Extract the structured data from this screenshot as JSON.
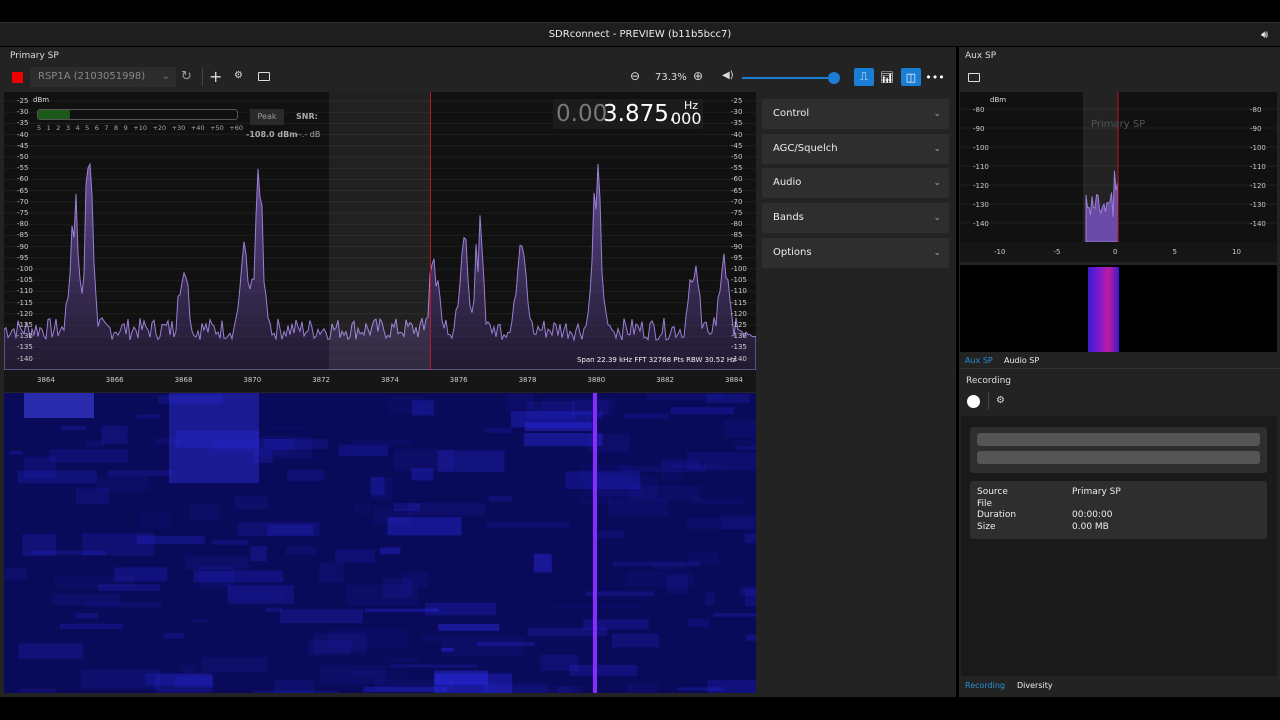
{
  "window": {
    "title": "SDRconnect - PREVIEW (b11b5bcc7)",
    "speaker_icon": "speaker-icon"
  },
  "primary": {
    "title": "Primary SP",
    "device": "RSP1A (2103051998)",
    "zoom": "73.3%",
    "volume_percent": 100,
    "meter": {
      "unit": "dBm",
      "scale": [
        "5",
        "1",
        "2",
        "3",
        "4",
        "5",
        "6",
        "7",
        "8",
        "9",
        "+10",
        "+20",
        "+30",
        "+40",
        "+50",
        "+60"
      ],
      "peak_label": "Peak",
      "snr_label": "SNR:",
      "dbm_value": "-108.0 dBm",
      "snr_value": "--.- dB",
      "level_percent": 16
    },
    "frequency": {
      "dim": "0.00",
      "main": "3.875.",
      "small": "000",
      "unit": "Hz"
    },
    "y_ticks": [
      "-25",
      "-30",
      "-35",
      "-40",
      "-45",
      "-50",
      "-55",
      "-60",
      "-65",
      "-70",
      "-75",
      "-80",
      "-85",
      "-90",
      "-95",
      "-100",
      "-105",
      "-110",
      "-115",
      "-120",
      "-125",
      "-130",
      "-135",
      "-140"
    ],
    "freq_ticks": [
      "3864",
      "3866",
      "3868",
      "3870",
      "3872",
      "3874",
      "3876",
      "3878",
      "3880",
      "3882",
      "3884"
    ],
    "span_info": "Span 22.39 kHz FFT 32768 Pts  RBW 30.52 Hz",
    "colors": {
      "trace": "#9b7fd4",
      "marker": "#c0142a",
      "waterfall": "#0a0a5a",
      "accent": "#1a7fd4"
    }
  },
  "controls": [
    "Control",
    "AGC/Squelch",
    "Audio",
    "Bands",
    "Options"
  ],
  "aux": {
    "title": "Aux SP",
    "unit": "dBm",
    "overlay": "Primary SP",
    "y_ticks": [
      "-80",
      "-90",
      "-100",
      "-110",
      "-120",
      "-130",
      "-140"
    ],
    "x_ticks": [
      "-10",
      "-5",
      "0",
      "5",
      "10"
    ],
    "tabs": [
      "Aux SP",
      "Audio SP"
    ]
  },
  "recording": {
    "title": "Recording",
    "rows": [
      {
        "k": "Source",
        "v": "Primary SP"
      },
      {
        "k": "File",
        "v": ""
      },
      {
        "k": "Duration",
        "v": "00:00:00"
      },
      {
        "k": "Size",
        "v": "0.00 MB"
      }
    ],
    "tabs": [
      "Recording",
      "Diversity"
    ]
  }
}
